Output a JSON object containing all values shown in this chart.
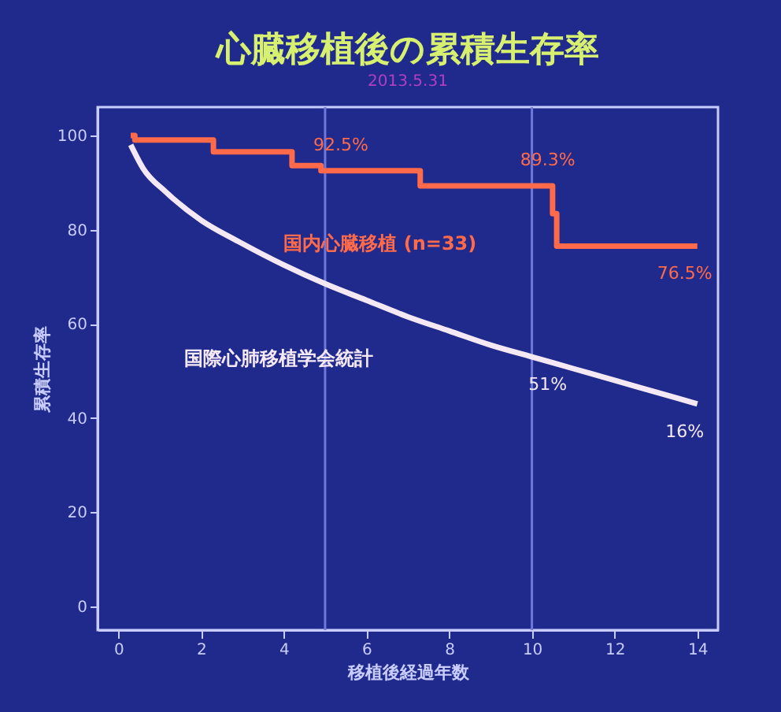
{
  "chart_data": {
    "type": "step",
    "title": "心臓移植後の累積生存率",
    "subtitle": "2013.5.31",
    "xlabel": "移植後経過年数",
    "ylabel": "累積生存率",
    "xlim": [
      -0.5,
      14.5
    ],
    "ylim": [
      -5,
      106
    ],
    "xticks": [
      0,
      2,
      4,
      6,
      8,
      10,
      12,
      14
    ],
    "yticks": [
      0,
      20,
      40,
      60,
      80,
      100
    ],
    "grid": false,
    "series": [
      {
        "name": "国内心臓移植 (n=33)",
        "color": "#ff6a4a",
        "x": [
          0.3,
          0.4,
          2.3,
          4.2,
          4.9,
          7.3,
          10.5,
          10.6,
          14
        ],
        "values": [
          100,
          99,
          96.5,
          93.6,
          92.5,
          89.3,
          83.4,
          76.5,
          76.5
        ]
      },
      {
        "name": "国際心肺移植学会統計",
        "color": "#f4e8f4",
        "type": "line",
        "x": [
          0.3,
          0.6,
          1.15,
          2,
          2.9,
          4,
          5,
          6,
          7,
          8,
          9,
          10,
          11,
          12,
          13,
          14
        ],
        "values": [
          98,
          93,
          88,
          82,
          77.5,
          72.5,
          68.5,
          65,
          61.5,
          58.5,
          55.5,
          53,
          50.5,
          48,
          45.5,
          43
        ]
      }
    ],
    "ref_lines": [
      {
        "axis": "x",
        "value": 5,
        "color": "#6f78d8"
      },
      {
        "axis": "x",
        "value": 10,
        "color": "#6f78d8"
      }
    ],
    "annotations": [
      {
        "text": "92.5%",
        "x": 5,
        "y": 92.5
      },
      {
        "text": "89.3%",
        "x": 10,
        "y": 89.3
      },
      {
        "text": "76.5%",
        "x": 14,
        "y": 76.5
      },
      {
        "text": "51%",
        "x": 10,
        "y": 53
      },
      {
        "text": "16%",
        "x": 14,
        "y": 43
      }
    ]
  }
}
